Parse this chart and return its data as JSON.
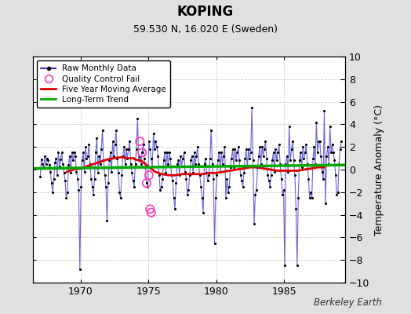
{
  "title": "KOPING",
  "subtitle": "59.530 N, 16.020 E (Sweden)",
  "ylabel": "Temperature Anomaly (°C)",
  "watermark": "Berkeley Earth",
  "ylim": [
    -10,
    10
  ],
  "yticks": [
    -10,
    -8,
    -6,
    -4,
    -2,
    0,
    2,
    4,
    6,
    8,
    10
  ],
  "xlim": [
    1966.5,
    1989.5
  ],
  "xticks": [
    1970,
    1975,
    1980,
    1985
  ],
  "bg_color": "#e0e0e0",
  "plot_bg_color": "#ffffff",
  "raw_color": "#3333cc",
  "ma_color": "#dd0000",
  "trend_color": "#00aa00",
  "dot_color": "#000000",
  "qc_color": "#ff44bb",
  "legend_labels": [
    "Raw Monthly Data",
    "Quality Control Fail",
    "Five Year Moving Average",
    "Long-Term Trend"
  ],
  "raw_data": [
    [
      1967.042,
      -0.6
    ],
    [
      1967.125,
      0.9
    ],
    [
      1967.208,
      0.5
    ],
    [
      1967.292,
      0.2
    ],
    [
      1967.375,
      1.2
    ],
    [
      1967.458,
      0.5
    ],
    [
      1967.542,
      1.0
    ],
    [
      1967.625,
      0.8
    ],
    [
      1967.708,
      0.4
    ],
    [
      1967.792,
      -0.2
    ],
    [
      1967.875,
      -1.2
    ],
    [
      1967.958,
      -2.0
    ],
    [
      1968.042,
      -0.8
    ],
    [
      1968.125,
      0.6
    ],
    [
      1968.208,
      1.0
    ],
    [
      1968.292,
      -0.5
    ],
    [
      1968.375,
      1.5
    ],
    [
      1968.458,
      0.3
    ],
    [
      1968.542,
      0.9
    ],
    [
      1968.625,
      1.5
    ],
    [
      1968.708,
      0.5
    ],
    [
      1968.792,
      -0.3
    ],
    [
      1968.875,
      -1.0
    ],
    [
      1968.958,
      -2.5
    ],
    [
      1969.042,
      -2.0
    ],
    [
      1969.125,
      0.4
    ],
    [
      1969.208,
      1.2
    ],
    [
      1969.292,
      -0.3
    ],
    [
      1969.375,
      1.5
    ],
    [
      1969.458,
      0.8
    ],
    [
      1969.542,
      1.5
    ],
    [
      1969.625,
      1.2
    ],
    [
      1969.708,
      -0.2
    ],
    [
      1969.792,
      -0.8
    ],
    [
      1969.875,
      -1.8
    ],
    [
      1969.958,
      -8.8
    ],
    [
      1970.042,
      -1.5
    ],
    [
      1970.125,
      0.8
    ],
    [
      1970.208,
      1.5
    ],
    [
      1970.292,
      -0.2
    ],
    [
      1970.375,
      2.0
    ],
    [
      1970.458,
      1.0
    ],
    [
      1970.542,
      1.2
    ],
    [
      1970.625,
      2.2
    ],
    [
      1970.708,
      0.5
    ],
    [
      1970.792,
      -0.8
    ],
    [
      1970.875,
      -1.5
    ],
    [
      1970.958,
      -2.2
    ],
    [
      1971.042,
      -0.8
    ],
    [
      1971.125,
      1.5
    ],
    [
      1971.208,
      2.8
    ],
    [
      1971.292,
      -0.3
    ],
    [
      1971.375,
      1.2
    ],
    [
      1971.458,
      0.5
    ],
    [
      1971.542,
      1.8
    ],
    [
      1971.625,
      3.5
    ],
    [
      1971.708,
      0.8
    ],
    [
      1971.792,
      -0.5
    ],
    [
      1971.875,
      -1.5
    ],
    [
      1971.958,
      -4.5
    ],
    [
      1972.042,
      -1.2
    ],
    [
      1972.125,
      0.8
    ],
    [
      1972.208,
      1.5
    ],
    [
      1972.292,
      -0.2
    ],
    [
      1972.375,
      2.5
    ],
    [
      1972.458,
      1.2
    ],
    [
      1972.542,
      2.2
    ],
    [
      1972.625,
      3.5
    ],
    [
      1972.708,
      1.0
    ],
    [
      1972.792,
      -0.3
    ],
    [
      1972.875,
      -2.0
    ],
    [
      1972.958,
      -2.5
    ],
    [
      1973.042,
      -0.5
    ],
    [
      1973.125,
      1.2
    ],
    [
      1973.208,
      2.0
    ],
    [
      1973.292,
      0.5
    ],
    [
      1973.375,
      1.8
    ],
    [
      1973.458,
      1.0
    ],
    [
      1973.542,
      1.8
    ],
    [
      1973.625,
      2.5
    ],
    [
      1973.708,
      0.5
    ],
    [
      1973.792,
      -0.3
    ],
    [
      1973.875,
      -1.0
    ],
    [
      1973.958,
      -1.5
    ],
    [
      1974.042,
      0.5
    ],
    [
      1974.125,
      1.8
    ],
    [
      1974.208,
      4.5
    ],
    [
      1974.292,
      0.8
    ],
    [
      1974.375,
      1.2
    ],
    [
      1974.458,
      0.5
    ],
    [
      1974.542,
      1.5
    ],
    [
      1974.625,
      2.2
    ],
    [
      1974.708,
      1.0
    ],
    [
      1974.792,
      0.2
    ],
    [
      1974.875,
      -1.2
    ],
    [
      1974.958,
      -1.5
    ],
    [
      1975.042,
      2.5
    ],
    [
      1975.125,
      1.8
    ],
    [
      1975.208,
      1.0
    ],
    [
      1975.292,
      0.3
    ],
    [
      1975.375,
      3.2
    ],
    [
      1975.458,
      1.8
    ],
    [
      1975.542,
      2.5
    ],
    [
      1975.625,
      2.0
    ],
    [
      1975.708,
      1.2
    ],
    [
      1975.792,
      -0.5
    ],
    [
      1975.875,
      -1.8
    ],
    [
      1975.958,
      -1.5
    ],
    [
      1976.042,
      -0.8
    ],
    [
      1976.125,
      0.8
    ],
    [
      1976.208,
      1.5
    ],
    [
      1976.292,
      -0.3
    ],
    [
      1976.375,
      1.5
    ],
    [
      1976.458,
      0.5
    ],
    [
      1976.542,
      1.5
    ],
    [
      1976.625,
      1.0
    ],
    [
      1976.708,
      -0.5
    ],
    [
      1976.792,
      -1.0
    ],
    [
      1976.875,
      -2.5
    ],
    [
      1976.958,
      -3.5
    ],
    [
      1977.042,
      -1.2
    ],
    [
      1977.125,
      0.5
    ],
    [
      1977.208,
      0.8
    ],
    [
      1977.292,
      -0.5
    ],
    [
      1977.375,
      1.2
    ],
    [
      1977.458,
      0.3
    ],
    [
      1977.542,
      1.0
    ],
    [
      1977.625,
      1.5
    ],
    [
      1977.708,
      -0.2
    ],
    [
      1977.792,
      -0.8
    ],
    [
      1977.875,
      -2.2
    ],
    [
      1977.958,
      -1.8
    ],
    [
      1978.042,
      -0.5
    ],
    [
      1978.125,
      0.8
    ],
    [
      1978.208,
      1.2
    ],
    [
      1978.292,
      -0.3
    ],
    [
      1978.375,
      1.5
    ],
    [
      1978.458,
      0.5
    ],
    [
      1978.542,
      1.2
    ],
    [
      1978.625,
      2.0
    ],
    [
      1978.708,
      0.5
    ],
    [
      1978.792,
      -0.5
    ],
    [
      1978.875,
      -1.5
    ],
    [
      1978.958,
      -2.5
    ],
    [
      1979.042,
      -3.8
    ],
    [
      1979.125,
      0.5
    ],
    [
      1979.208,
      1.0
    ],
    [
      1979.292,
      -0.3
    ],
    [
      1979.375,
      -1.0
    ],
    [
      1979.458,
      -0.5
    ],
    [
      1979.542,
      1.0
    ],
    [
      1979.625,
      3.5
    ],
    [
      1979.708,
      0.5
    ],
    [
      1979.792,
      -0.8
    ],
    [
      1979.875,
      -6.5
    ],
    [
      1979.958,
      -2.5
    ],
    [
      1980.042,
      -0.5
    ],
    [
      1980.125,
      0.8
    ],
    [
      1980.208,
      1.5
    ],
    [
      1980.292,
      -0.2
    ],
    [
      1980.375,
      1.5
    ],
    [
      1980.458,
      0.5
    ],
    [
      1980.542,
      1.2
    ],
    [
      1980.625,
      2.0
    ],
    [
      1980.708,
      -2.5
    ],
    [
      1980.792,
      -0.8
    ],
    [
      1980.875,
      -2.0
    ],
    [
      1980.958,
      -1.5
    ],
    [
      1981.042,
      0.2
    ],
    [
      1981.125,
      1.0
    ],
    [
      1981.208,
      1.8
    ],
    [
      1981.292,
      0.2
    ],
    [
      1981.375,
      1.8
    ],
    [
      1981.458,
      0.8
    ],
    [
      1981.542,
      1.5
    ],
    [
      1981.625,
      2.0
    ],
    [
      1981.708,
      0.8
    ],
    [
      1981.792,
      -0.5
    ],
    [
      1981.875,
      -1.0
    ],
    [
      1981.958,
      -1.5
    ],
    [
      1982.042,
      -0.3
    ],
    [
      1982.125,
      1.0
    ],
    [
      1982.208,
      1.8
    ],
    [
      1982.292,
      0.2
    ],
    [
      1982.375,
      1.8
    ],
    [
      1982.458,
      1.0
    ],
    [
      1982.542,
      1.5
    ],
    [
      1982.625,
      5.5
    ],
    [
      1982.708,
      0.8
    ],
    [
      1982.792,
      -4.8
    ],
    [
      1982.875,
      -2.2
    ],
    [
      1982.958,
      -1.8
    ],
    [
      1983.042,
      0.2
    ],
    [
      1983.125,
      1.2
    ],
    [
      1983.208,
      2.0
    ],
    [
      1983.292,
      0.5
    ],
    [
      1983.375,
      2.0
    ],
    [
      1983.458,
      1.2
    ],
    [
      1983.542,
      1.8
    ],
    [
      1983.625,
      2.5
    ],
    [
      1983.708,
      1.0
    ],
    [
      1983.792,
      -0.5
    ],
    [
      1983.875,
      -1.0
    ],
    [
      1983.958,
      -1.5
    ],
    [
      1984.042,
      -0.5
    ],
    [
      1984.125,
      0.8
    ],
    [
      1984.208,
      1.5
    ],
    [
      1984.292,
      -0.2
    ],
    [
      1984.375,
      1.8
    ],
    [
      1984.458,
      0.8
    ],
    [
      1984.542,
      1.5
    ],
    [
      1984.625,
      2.2
    ],
    [
      1984.708,
      0.5
    ],
    [
      1984.792,
      -0.8
    ],
    [
      1984.875,
      -2.2
    ],
    [
      1984.958,
      -1.8
    ],
    [
      1985.042,
      -8.5
    ],
    [
      1985.125,
      0.5
    ],
    [
      1985.208,
      1.2
    ],
    [
      1985.292,
      -0.2
    ],
    [
      1985.375,
      3.8
    ],
    [
      1985.458,
      0.8
    ],
    [
      1985.542,
      1.8
    ],
    [
      1985.625,
      2.5
    ],
    [
      1985.708,
      0.8
    ],
    [
      1985.792,
      -0.5
    ],
    [
      1985.875,
      -3.5
    ],
    [
      1985.958,
      -8.5
    ],
    [
      1986.042,
      -2.5
    ],
    [
      1986.125,
      0.8
    ],
    [
      1986.208,
      1.5
    ],
    [
      1986.292,
      0.2
    ],
    [
      1986.375,
      2.0
    ],
    [
      1986.458,
      1.0
    ],
    [
      1986.542,
      1.5
    ],
    [
      1986.625,
      2.2
    ],
    [
      1986.708,
      0.5
    ],
    [
      1986.792,
      -0.8
    ],
    [
      1986.875,
      -2.5
    ],
    [
      1986.958,
      -2.0
    ],
    [
      1987.042,
      -2.5
    ],
    [
      1987.125,
      1.0
    ],
    [
      1987.208,
      2.0
    ],
    [
      1987.292,
      0.5
    ],
    [
      1987.375,
      4.2
    ],
    [
      1987.458,
      1.5
    ],
    [
      1987.542,
      2.5
    ],
    [
      1987.625,
      2.5
    ],
    [
      1987.708,
      1.2
    ],
    [
      1987.792,
      -0.2
    ],
    [
      1987.875,
      -0.8
    ],
    [
      1987.958,
      5.2
    ],
    [
      1988.042,
      -3.0
    ],
    [
      1988.125,
      1.2
    ],
    [
      1988.208,
      2.0
    ],
    [
      1988.292,
      0.5
    ],
    [
      1988.375,
      3.8
    ],
    [
      1988.458,
      1.5
    ],
    [
      1988.542,
      2.2
    ],
    [
      1988.625,
      1.5
    ],
    [
      1988.708,
      0.8
    ],
    [
      1988.792,
      -0.5
    ],
    [
      1988.875,
      -2.2
    ],
    [
      1988.958,
      -2.0
    ],
    [
      1989.042,
      0.5
    ],
    [
      1989.125,
      1.8
    ],
    [
      1989.208,
      2.5
    ]
  ],
  "qc_fail_points": [
    [
      1974.375,
      2.5
    ],
    [
      1974.542,
      1.5
    ],
    [
      1974.875,
      -1.2
    ],
    [
      1975.042,
      -0.5
    ],
    [
      1975.125,
      -3.5
    ],
    [
      1975.208,
      -3.8
    ]
  ],
  "moving_avg": [
    [
      1969.0,
      -0.2
    ],
    [
      1969.5,
      0.0
    ],
    [
      1970.0,
      0.1
    ],
    [
      1970.5,
      0.3
    ],
    [
      1971.0,
      0.5
    ],
    [
      1971.5,
      0.7
    ],
    [
      1972.0,
      0.9
    ],
    [
      1972.5,
      1.0
    ],
    [
      1973.0,
      1.1
    ],
    [
      1973.5,
      1.0
    ],
    [
      1973.958,
      1.0
    ],
    [
      1974.0,
      0.9
    ],
    [
      1974.458,
      0.8
    ],
    [
      1975.5,
      -0.2
    ],
    [
      1976.0,
      -0.4
    ],
    [
      1976.5,
      -0.5
    ],
    [
      1977.0,
      -0.5
    ],
    [
      1977.5,
      -0.4
    ],
    [
      1978.0,
      -0.4
    ],
    [
      1978.5,
      -0.4
    ],
    [
      1979.0,
      -0.4
    ],
    [
      1979.5,
      -0.3
    ],
    [
      1980.0,
      -0.3
    ],
    [
      1980.5,
      -0.2
    ],
    [
      1981.0,
      -0.1
    ],
    [
      1981.5,
      0.0
    ],
    [
      1982.0,
      0.1
    ],
    [
      1982.5,
      0.2
    ],
    [
      1983.0,
      0.2
    ],
    [
      1983.5,
      0.1
    ],
    [
      1984.0,
      0.0
    ],
    [
      1984.5,
      -0.1
    ],
    [
      1985.0,
      -0.1
    ],
    [
      1985.5,
      -0.1
    ],
    [
      1986.0,
      -0.1
    ],
    [
      1986.5,
      0.0
    ],
    [
      1987.0,
      0.1
    ],
    [
      1987.5,
      0.2
    ],
    [
      1987.958,
      0.2
    ]
  ],
  "trend_x": [
    1966.5,
    1989.5
  ],
  "trend_y": [
    0.1,
    0.4
  ]
}
